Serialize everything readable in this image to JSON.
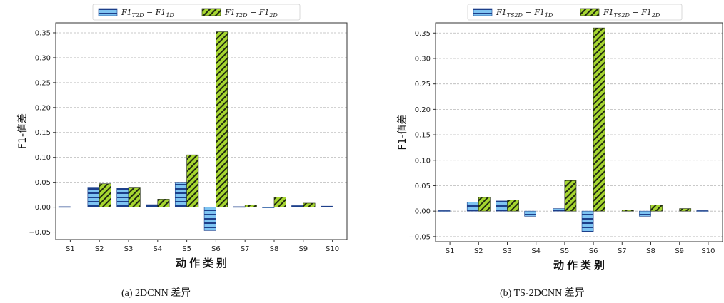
{
  "colors": {
    "series_a_fill": "#7ec4f2",
    "series_a_hatch": "#1c3f8a",
    "series_b_fill": "#a6d630",
    "series_b_hatch": "#1f2a10",
    "grid": "#b8b8b8",
    "axis": "#333333"
  },
  "chart_data": [
    {
      "type": "bar",
      "caption": "(a) 2DCNN 差异",
      "ylabel": "F1-值差",
      "xlabel": "动作类别",
      "categories": [
        "S1",
        "S2",
        "S3",
        "S4",
        "S5",
        "S6",
        "S7",
        "S8",
        "S9",
        "S10"
      ],
      "ylim": [
        -0.065,
        0.37
      ],
      "yticks": [
        -0.05,
        0.0,
        0.05,
        0.1,
        0.15,
        0.2,
        0.25,
        0.3,
        0.35
      ],
      "ytick_labels": [
        "−0.05",
        "0.00",
        "0.05",
        "0.10",
        "0.15",
        "0.20",
        "0.25",
        "0.30",
        "0.35"
      ],
      "grid": true,
      "legend_position": "top",
      "series": [
        {
          "name": "F1_{T2D} − F1_{1D}",
          "legend": {
            "main1": "F1",
            "sub1": "T2D",
            "op": " − ",
            "main2": "F1",
            "sub2": "1D"
          },
          "hatch": "horizontal",
          "values": [
            0.001,
            0.04,
            0.038,
            0.005,
            0.05,
            -0.047,
            0.001,
            -0.001,
            0.003,
            0.002
          ]
        },
        {
          "name": "F1_{T2D} − F1_{2D}",
          "legend": {
            "main1": "F1",
            "sub1": "T2D",
            "op": " − ",
            "main2": "F1",
            "sub2": "2D"
          },
          "hatch": "diagonal",
          "values": [
            0.0,
            0.047,
            0.04,
            0.016,
            0.105,
            0.352,
            0.004,
            0.02,
            0.008,
            0.0
          ]
        }
      ]
    },
    {
      "type": "bar",
      "caption": "(b) TS-2DCNN 差异",
      "ylabel": "F1-值差",
      "xlabel": "动作类别",
      "categories": [
        "S1",
        "S2",
        "S3",
        "S4",
        "S5",
        "S6",
        "S7",
        "S8",
        "S9",
        "S10"
      ],
      "ylim": [
        -0.06,
        0.37
      ],
      "yticks": [
        -0.05,
        0.0,
        0.05,
        0.1,
        0.15,
        0.2,
        0.25,
        0.3,
        0.35
      ],
      "ytick_labels": [
        "−0.05",
        "0.00",
        "0.05",
        "0.10",
        "0.15",
        "0.20",
        "0.25",
        "0.30",
        "0.35"
      ],
      "grid": true,
      "legend_position": "top",
      "series": [
        {
          "name": "F1_{TS2D} − F1_{1D}",
          "legend": {
            "main1": "F1",
            "sub1": "TS2D",
            "op": " − ",
            "main2": "F1",
            "sub2": "1D"
          },
          "hatch": "horizontal",
          "values": [
            0.001,
            0.018,
            0.02,
            -0.01,
            0.005,
            -0.04,
            0.0,
            -0.01,
            0.0,
            0.001
          ]
        },
        {
          "name": "F1_{TS2D} − F1_{2D}",
          "legend": {
            "main1": "F1",
            "sub1": "TS2D",
            "op": " − ",
            "main2": "F1",
            "sub2": "2D"
          },
          "hatch": "diagonal",
          "values": [
            0.0,
            0.027,
            0.022,
            0.0,
            0.06,
            0.36,
            0.002,
            0.012,
            0.005,
            0.0
          ]
        }
      ]
    }
  ]
}
